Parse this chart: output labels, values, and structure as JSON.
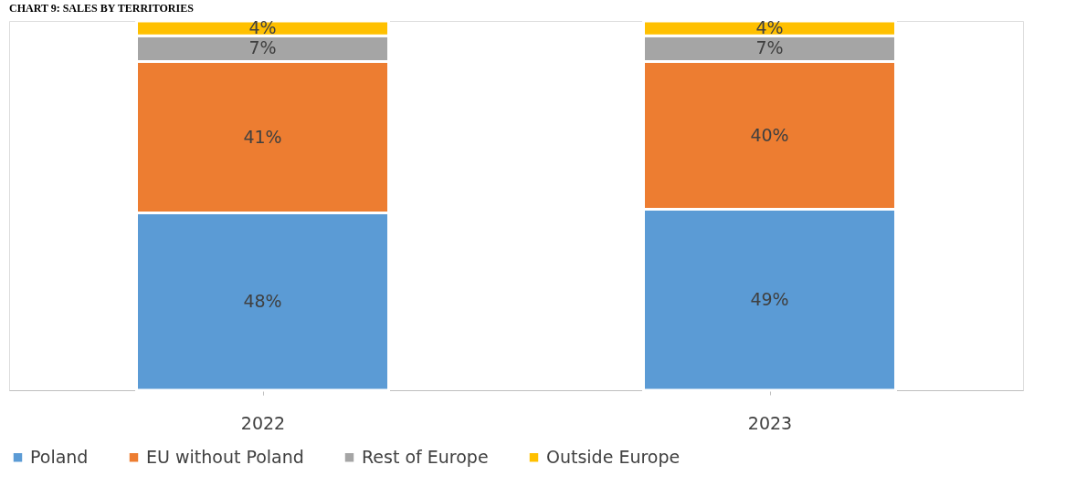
{
  "chart_data": {
    "type": "bar",
    "title": "CHART 9: SALES BY TERRITORIES",
    "stacked": true,
    "legend": "bottom",
    "tick_labels": "x",
    "categories": [
      "2022",
      "2023"
    ],
    "series": [
      {
        "name": "Poland",
        "color": "#5b9bd5",
        "values": [
          48,
          49
        ],
        "value_labels": [
          "48%",
          "49%"
        ]
      },
      {
        "name": "EU without Poland",
        "color": "#ed7d31",
        "values": [
          41,
          40
        ],
        "value_labels": [
          "41%",
          "40%"
        ]
      },
      {
        "name": "Rest of Europe",
        "color": "#a5a5a5",
        "values": [
          7,
          7
        ],
        "value_labels": [
          "7%",
          "7%"
        ]
      },
      {
        "name": "Outside Europe",
        "color": "#ffc000",
        "values": [
          4,
          4
        ],
        "value_labels": [
          "4%",
          "4%"
        ]
      }
    ]
  }
}
